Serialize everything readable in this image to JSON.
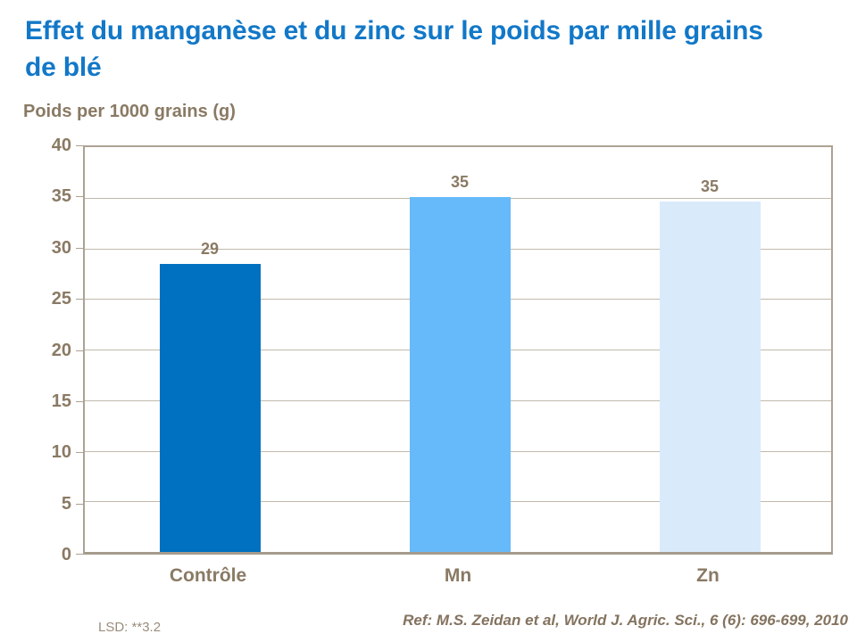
{
  "title": "Effet du manganèse et du zinc sur le poids par mille grains de blé",
  "footer": {
    "lsd": "LSD: **3.2",
    "reference": "Ref: M.S. Zeidan et al, World J. Agric. Sci., 6 (6): 696-699, 2010"
  },
  "colors": {
    "title_blue": "#1278C8",
    "axis_text_taupe": "#8A7A64",
    "gridline": "#C2B9AC",
    "plot_border": "#ACA294",
    "lsd_text": "#9A8C7C",
    "reference_text": "#84735F",
    "background": "#FFFFFF"
  },
  "chart_data": {
    "type": "bar",
    "title": "Effet du manganèse et du zinc sur le poids par mille grains de blé",
    "categories": [
      "Contrôle",
      "Mn",
      "Zn"
    ],
    "values": [
      29,
      35,
      35
    ],
    "rendered_bar_heights": [
      28.5,
      35.1,
      34.65
    ],
    "data_labels": [
      "29",
      "35",
      "35"
    ],
    "bar_colors": [
      "#0070C0",
      "#66BAF9",
      "#D9EAFB"
    ],
    "xlabel": "",
    "ylabel": "Poids per 1000 grains (g)",
    "ylim": [
      0,
      40
    ],
    "ytick_step": 5,
    "ytick_labels": [
      "0",
      "5",
      "10",
      "15",
      "20",
      "25",
      "30",
      "35",
      "40"
    ],
    "grid": true,
    "legend": "none"
  }
}
